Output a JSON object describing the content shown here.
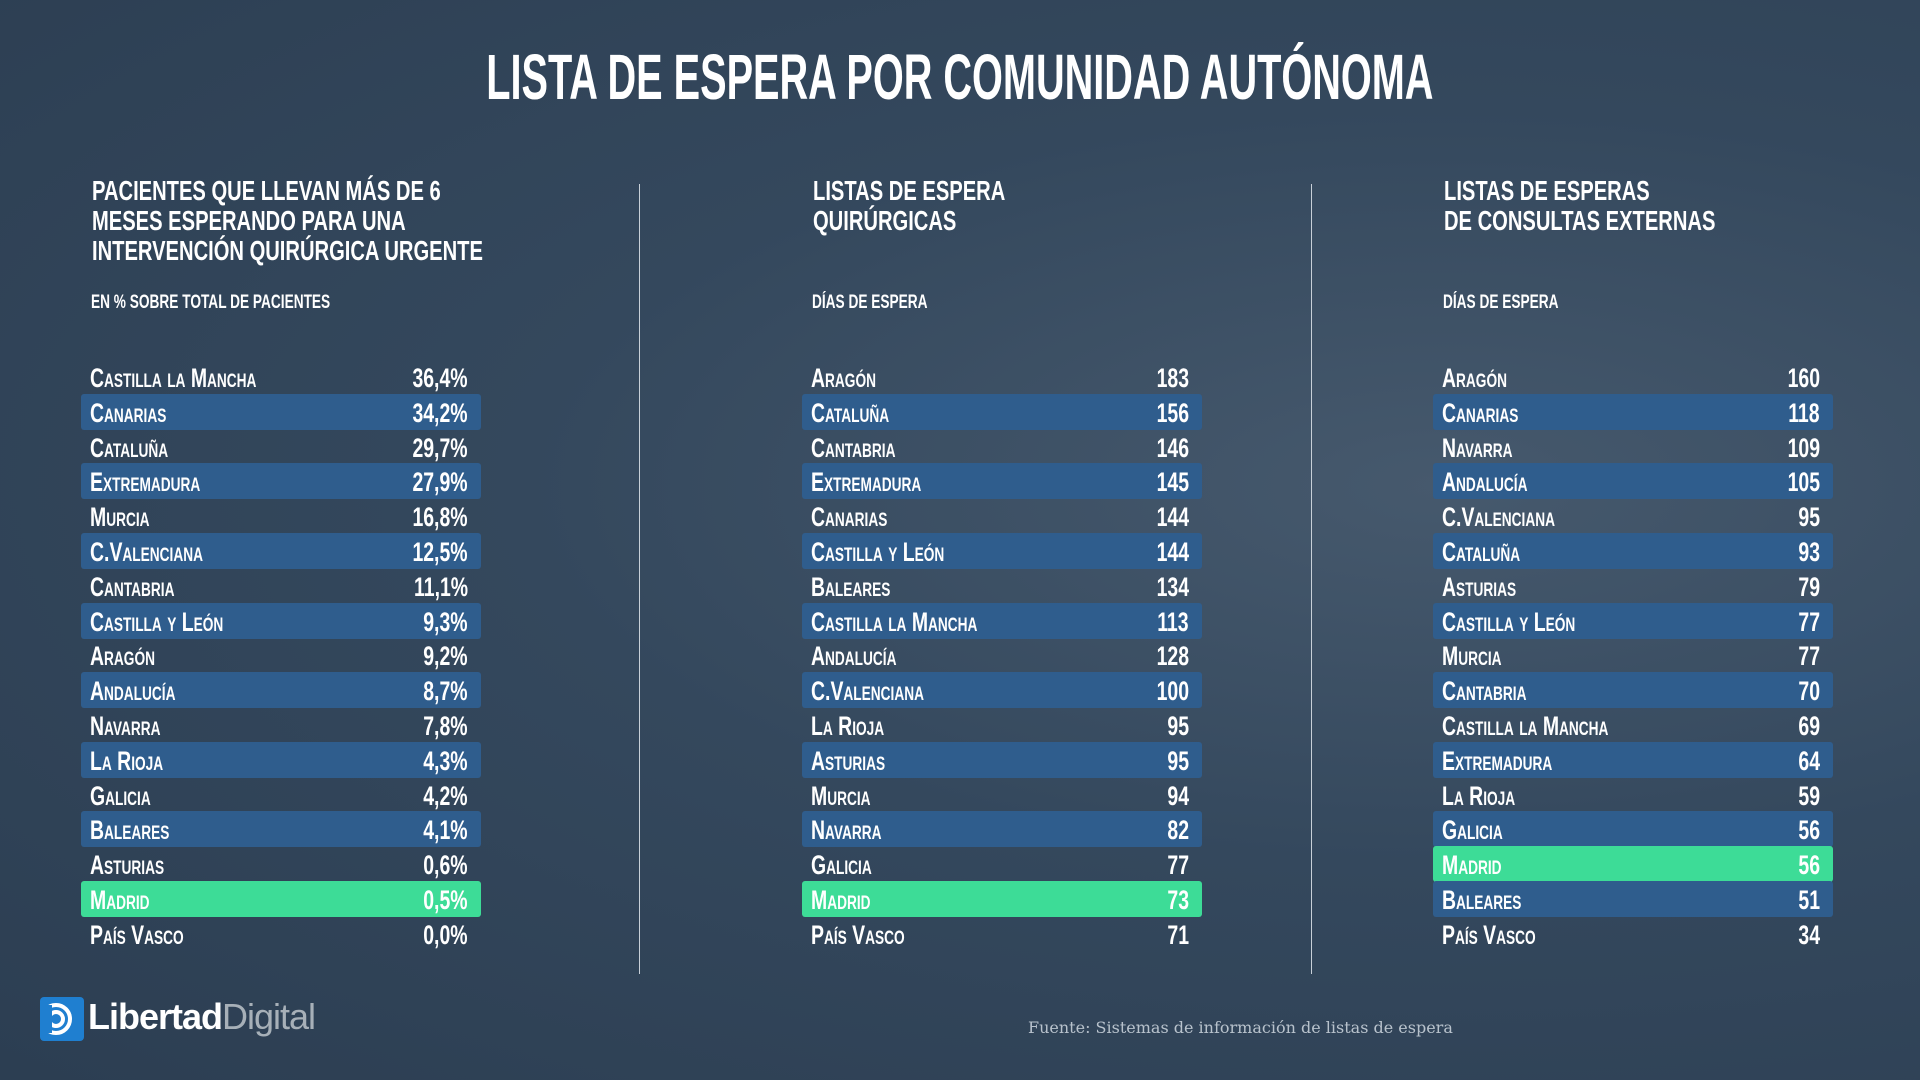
{
  "title": "LISTA DE ESPERA POR COMUNIDAD AUTÓNOMA",
  "tables": [
    {
      "heading": [
        "PACIENTES QUE LLEVAN MÁS DE 6",
        "MESES ESPERANDO PARA UNA",
        "INTERVENCIÓN QUIRÚRGICA URGENTE"
      ],
      "subheading": "EN % SOBRE TOTAL DE PACIENTES",
      "rows": [
        [
          "Castilla la Mancha",
          "36,4%"
        ],
        [
          "Canarias",
          "34,2%"
        ],
        [
          "Cataluña",
          "29,7%"
        ],
        [
          "Extremadura",
          "27,9%"
        ],
        [
          "Murcia",
          "16,8%"
        ],
        [
          "C.Valenciana",
          "12,5%"
        ],
        [
          "Cantabria",
          "11,1%"
        ],
        [
          "Castilla y León",
          "9,3%"
        ],
        [
          "Aragón",
          "9,2%"
        ],
        [
          "Andalucía",
          "8,7%"
        ],
        [
          "Navarra",
          "7,8%"
        ],
        [
          "La Rioja",
          "4,3%"
        ],
        [
          "Galicia",
          "4,2%"
        ],
        [
          "Baleares",
          "4,1%"
        ],
        [
          "Asturias",
          "0,6%"
        ],
        [
          "Madrid",
          "0,5%"
        ],
        [
          "País Vasco",
          "0,0%"
        ]
      ]
    },
    {
      "heading": [
        "LISTAS DE ESPERA",
        "QUIRÚRGICAS"
      ],
      "subheading": "DÍAS DE ESPERA",
      "rows": [
        [
          "Aragón",
          "183"
        ],
        [
          "Cataluña",
          "156"
        ],
        [
          "Cantabria",
          "146"
        ],
        [
          "Extremadura",
          "145"
        ],
        [
          "Canarias",
          "144"
        ],
        [
          "Castilla y León",
          "144"
        ],
        [
          "Baleares",
          "134"
        ],
        [
          "Castilla la Mancha",
          "113"
        ],
        [
          "Andalucía",
          "128"
        ],
        [
          "C.Valenciana",
          "100"
        ],
        [
          "La Rioja",
          "95"
        ],
        [
          "Asturias",
          "95"
        ],
        [
          "Murcia",
          "94"
        ],
        [
          "Navarra",
          "82"
        ],
        [
          "Galicia",
          "77"
        ],
        [
          "Madrid",
          "73"
        ],
        [
          "País Vasco",
          "71"
        ]
      ]
    },
    {
      "heading": [
        "LISTAS DE ESPERAS",
        "DE CONSULTAS EXTERNAS"
      ],
      "subheading": "DÍAS DE ESPERA",
      "rows": [
        [
          "Aragón",
          "160"
        ],
        [
          "Canarias",
          "118"
        ],
        [
          "Navarra",
          "109"
        ],
        [
          "Andalucía",
          "105"
        ],
        [
          "C.Valenciana",
          "95"
        ],
        [
          "Cataluña",
          "93"
        ],
        [
          "Asturias",
          "79"
        ],
        [
          "Castilla y León",
          "77"
        ],
        [
          "Murcia",
          "77"
        ],
        [
          "Cantabria",
          "70"
        ],
        [
          "Castilla la Mancha",
          "69"
        ],
        [
          "Extremadura",
          "64"
        ],
        [
          "La Rioja",
          "59"
        ],
        [
          "Galicia",
          "56"
        ],
        [
          "Madrid",
          "56"
        ],
        [
          "Baleares",
          "51"
        ],
        [
          "País Vasco",
          "34"
        ]
      ]
    }
  ],
  "logo": {
    "brand": "Libertad",
    "suffix": "Digital"
  },
  "source": "Fuente: Sistemas de información de listas de espera"
}
